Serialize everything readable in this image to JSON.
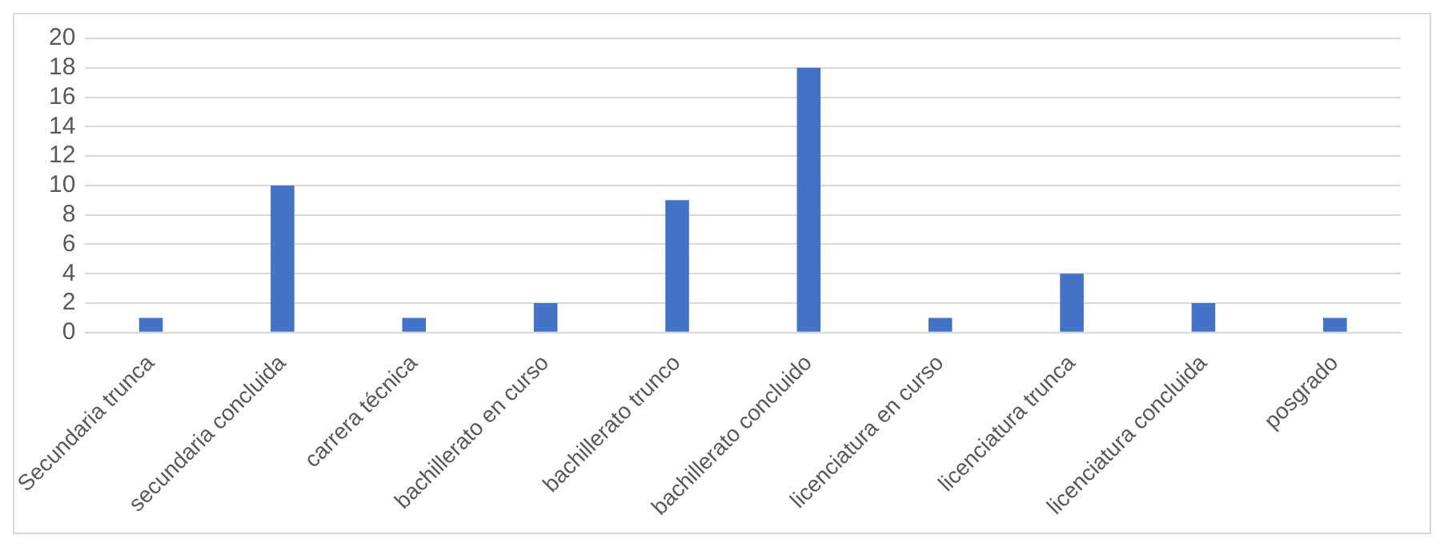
{
  "chart_data": {
    "type": "bar",
    "categories": [
      "Secundaria trunca",
      "secundaria concluida",
      "carrera técnica",
      "bachillerato en curso",
      "bachillerato trunco",
      "bachillerato concluido",
      "licenciatura en curso",
      "licenciatura trunca",
      "licenciatura concluida",
      "posgrado"
    ],
    "values": [
      1,
      10,
      1,
      2,
      9,
      18,
      1,
      4,
      2,
      1
    ],
    "color": "#4472c4",
    "ylim": [
      0,
      20
    ],
    "yticks": [
      0,
      2,
      4,
      6,
      8,
      10,
      12,
      14,
      16,
      18,
      20
    ],
    "grid": "y",
    "legend": false
  }
}
